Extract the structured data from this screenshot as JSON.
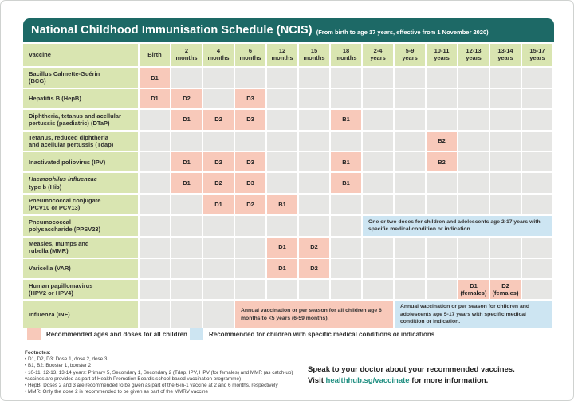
{
  "page": {
    "title": "National Childhood Immunisation Schedule (NCIS)",
    "subtitle": "(From birth to age 17 years, effective from 1 November 2020)"
  },
  "colors": {
    "teal_header": "#1d6966",
    "label_green": "#d9e5b1",
    "empty_gray": "#e6e6e4",
    "dose_pink": "#f8c9ba",
    "note_blue": "#cde5f2",
    "link_teal": "#1f8e80"
  },
  "table": {
    "columns": [
      "Vaccine",
      "Birth",
      "2\nmonths",
      "4\nmonths",
      "6\nmonths",
      "12\nmonths",
      "15\nmonths",
      "18\nmonths",
      "2-4\nyears",
      "5-9\nyears",
      "10-11\nyears",
      "12-13\nyears",
      "13-14\nyears",
      "15-17\nyears"
    ],
    "rows": [
      {
        "name_lines": [
          {
            "text": "Bacillus Calmette-Guérin"
          },
          {
            "text": "(BCG)"
          }
        ],
        "cells": {
          "0": "D1"
        }
      },
      {
        "name_lines": [
          {
            "text": "Hepatitis B (HepB)"
          }
        ],
        "cells": {
          "0": "D1",
          "1": "D2",
          "3": "D3"
        }
      },
      {
        "name_lines": [
          {
            "text": "Diphtheria, tetanus and acellular"
          },
          {
            "text": "pertussis (paediatric) (DTaP)"
          }
        ],
        "cells": {
          "1": "D1",
          "2": "D2",
          "3": "D3",
          "6": "B1"
        }
      },
      {
        "name_lines": [
          {
            "text": "Tetanus, reduced diphtheria"
          },
          {
            "text": "and acellular pertussis (Tdap)"
          }
        ],
        "cells": {
          "9": "B2"
        }
      },
      {
        "name_lines": [
          {
            "text": "Inactivated poliovirus (IPV)"
          }
        ],
        "cells": {
          "1": "D1",
          "2": "D2",
          "3": "D3",
          "6": "B1",
          "9": "B2"
        }
      },
      {
        "name_lines": [
          {
            "text": "Haemophilus influenzae",
            "italic": true
          },
          {
            "text": "type b (Hib)"
          }
        ],
        "cells": {
          "1": "D1",
          "2": "D2",
          "3": "D3",
          "6": "B1"
        }
      },
      {
        "name_lines": [
          {
            "text": "Pneumococcal conjugate"
          },
          {
            "text": "(PCV10 or PCV13)"
          }
        ],
        "cells": {
          "2": "D1",
          "3": "D2",
          "4": "B1"
        }
      },
      {
        "name_lines": [
          {
            "text": "Pneumococcal"
          },
          {
            "text": "polysaccharide (PPSV23)"
          }
        ],
        "cells": {},
        "notes": [
          {
            "start": 7,
            "span": 6,
            "type": "blue",
            "text": "One or two doses for children and adolescents age 2-17 years with specific medical condition or indication."
          }
        ]
      },
      {
        "name_lines": [
          {
            "text": "Measles, mumps and"
          },
          {
            "text": "rubella (MMR)"
          }
        ],
        "cells": {
          "4": "D1",
          "5": "D2"
        }
      },
      {
        "name_lines": [
          {
            "text": "Varicella (VAR)"
          }
        ],
        "cells": {
          "4": "D1",
          "5": "D2"
        }
      },
      {
        "name_lines": [
          {
            "text": "Human papillomavirus"
          },
          {
            "text": "(HPV2 or HPV4)"
          }
        ],
        "cells": {
          "10": "D1\n(females)",
          "11": "D2\n(females)"
        }
      },
      {
        "name_lines": [
          {
            "text": "Influenza (INF)"
          }
        ],
        "cells": {},
        "notes": [
          {
            "start": 3,
            "span": 5,
            "type": "pink",
            "text": "Annual vaccination or per season for all children age 6 months to <5 years (6-59 months).",
            "underline": "all children"
          },
          {
            "start": 8,
            "span": 5,
            "type": "blue",
            "text": "Annual vaccination or per season for children and adolescents age 5-17 years with specific medical condition or indication."
          }
        ]
      }
    ]
  },
  "legend": {
    "items": [
      {
        "type": "pink",
        "label": "Recommended ages and doses for all children"
      },
      {
        "type": "blue",
        "label": "Recommended for children with specific medical conditions or indications"
      }
    ]
  },
  "footnotes": {
    "title": "Footnotes:",
    "items": [
      "D1, D2, D3: Dose 1, dose 2, dose 3",
      "B1, B2: Booster 1, booster 2",
      "10-11, 12-13, 13-14 years: Primary 5, Secondary 1, Secondary 2 (Tdap, IPV, HPV (for females) and MMR (as catch-up) vaccines are provided as part of Health Promotion Board's school-based vaccination programme)",
      "HepB: Doses 2 and 3 are recommended to be given as part of the 6-in-1 vaccine at 2 and 6 months, respectively",
      "MMR: Only the dose 2 is recommended to be given as part of the MMRV vaccine"
    ]
  },
  "footer": {
    "line1": "Speak to your doctor about your recommended vaccines.",
    "line2_prefix": "Visit ",
    "link": "healthhub.sg/vaccinate",
    "line2_suffix": " for more information."
  }
}
